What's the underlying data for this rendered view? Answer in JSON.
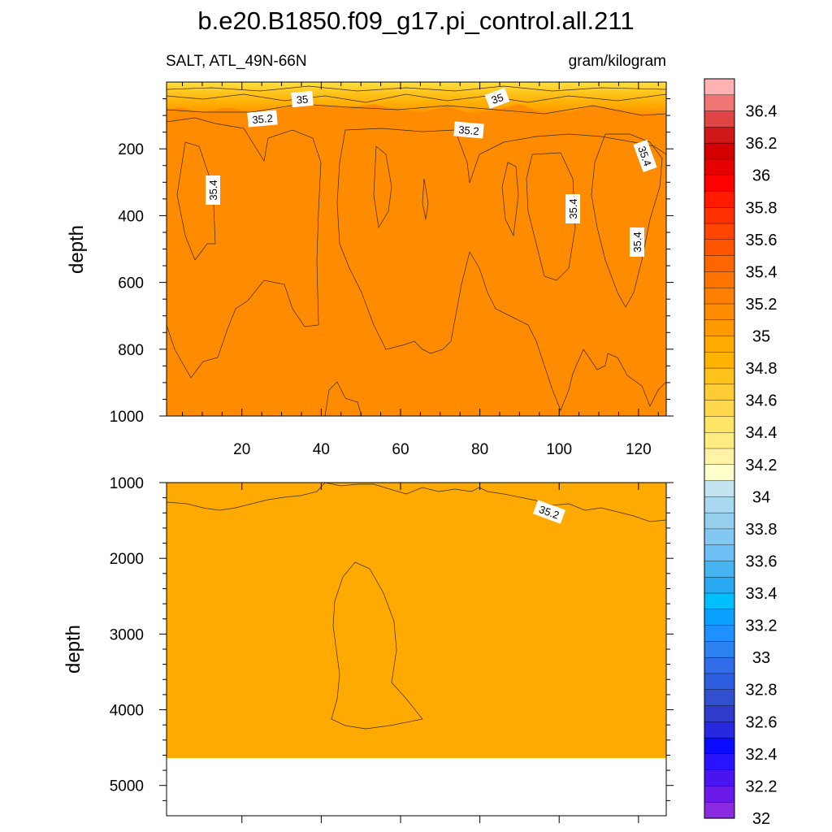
{
  "title": "b.e20.B1850.f09_g17.pi_control.all.211",
  "left_string": "SALT, ATL_49N-66N",
  "right_string": "gram/kilogram",
  "colors": {
    "band_34_8_35": "#ffaa00",
    "band_35_35_2": "#ff8c00",
    "band_35_2_35_4": "#ff7300",
    "band_35_4_35_6": "#ff5500",
    "surface_fresh": "#ffd21e",
    "missing": "#ffffff"
  },
  "chart_data": [
    {
      "type": "heatmap",
      "panel": "upper",
      "ylabel": "depth",
      "xlabel": "",
      "xlim": [
        1,
        127
      ],
      "ylim": [
        1000,
        0
      ],
      "xticks": [
        "20",
        "40",
        "60",
        "80",
        "100",
        "120"
      ],
      "yticks": [
        "200",
        "400",
        "600",
        "800",
        "1000"
      ],
      "contour_labels": [
        "35",
        "35",
        "35.2",
        "35.2",
        "35.4",
        "35.4",
        "35.4",
        "35.4"
      ]
    },
    {
      "type": "heatmap",
      "panel": "lower",
      "ylabel": "depth",
      "xlabel": "",
      "xlim": [
        1,
        127
      ],
      "ylim": [
        5400,
        1000
      ],
      "yticks": [
        "1000",
        "2000",
        "3000",
        "4000",
        "5000"
      ],
      "bottom_depth": 4600,
      "contour_labels": [
        "35.2"
      ]
    }
  ],
  "colorbar": {
    "labels": [
      "36.4",
      "36.2",
      "36",
      "35.8",
      "35.6",
      "35.4",
      "35.2",
      "35",
      "34.8",
      "34.6",
      "34.4",
      "34.2",
      "34",
      "33.8",
      "33.6",
      "33.4",
      "33.2",
      "33",
      "32.8",
      "32.6",
      "32.4",
      "32.2",
      "32"
    ],
    "colors": [
      "#ffb3b3",
      "#f07575",
      "#e04545",
      "#d01818",
      "#d40000",
      "#e60000",
      "#ff0000",
      "#ff1a00",
      "#ff3000",
      "#ff4500",
      "#ff5500",
      "#ff6600",
      "#ff7300",
      "#ff8000",
      "#ff8c00",
      "#ff9900",
      "#ffaa00",
      "#ffb300",
      "#ffc21a",
      "#ffcc33",
      "#ffd84d",
      "#ffe566",
      "#ffec80",
      "#fff3a6",
      "#ffffcc",
      "#c4e4f2",
      "#aad8ef",
      "#96d0ef",
      "#82c8f2",
      "#6ec0f4",
      "#46b4f0",
      "#28a8f0",
      "#00bfff",
      "#0aa0ff",
      "#1e90ff",
      "#2c82f0",
      "#2f6ee8",
      "#2e5ee0",
      "#3050d0",
      "#2e3ccc",
      "#2828e0",
      "#0a0aff",
      "#2a14ff",
      "#4a14f0",
      "#6a1ae8",
      "#8a2be2"
    ]
  }
}
